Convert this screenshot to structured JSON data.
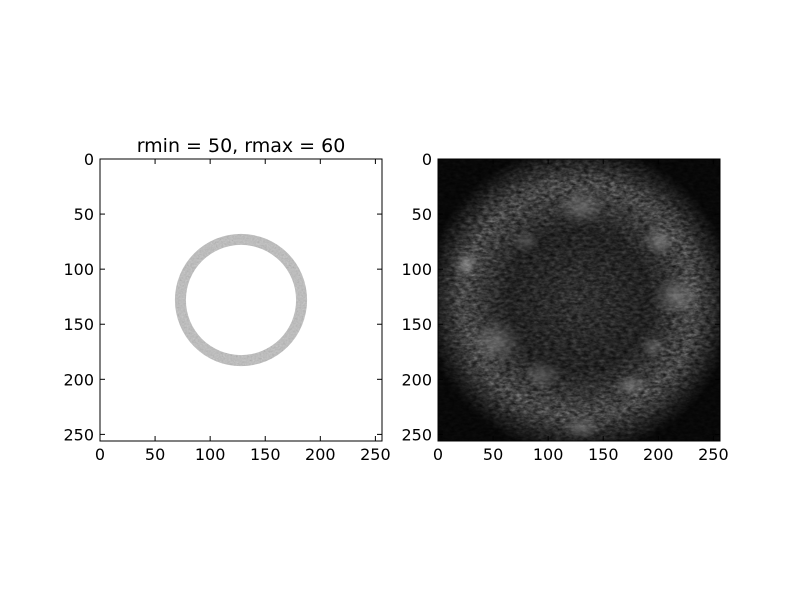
{
  "chart_data": [
    {
      "type": "heatmap",
      "title": "rmin = 50, rmax = 60",
      "colormap": "gray",
      "background": "#ffffff",
      "xlim": [
        0,
        256
      ],
      "ylim": [
        256,
        0
      ],
      "xticks": [
        0,
        50,
        100,
        150,
        200,
        250
      ],
      "yticks": [
        0,
        50,
        100,
        150,
        200,
        250
      ],
      "x_tick_labels": [
        "0",
        "50",
        "100",
        "150",
        "200",
        "250"
      ],
      "y_tick_labels": [
        "0",
        "50",
        "100",
        "150",
        "200",
        "250"
      ],
      "annulus": {
        "center": [
          128,
          128
        ],
        "rmin": 50,
        "rmax": 60
      }
    },
    {
      "type": "heatmap",
      "title": "",
      "colormap": "gray",
      "background": "#000000",
      "xlim": [
        0,
        256
      ],
      "ylim": [
        256,
        0
      ],
      "xticks": [
        0,
        50,
        100,
        150,
        200,
        250
      ],
      "yticks": [
        0,
        50,
        100,
        150,
        200,
        250
      ],
      "x_tick_labels": [
        "0",
        "50",
        "100",
        "150",
        "200",
        "250"
      ],
      "y_tick_labels": [
        "0",
        "50",
        "100",
        "150",
        "200",
        "250"
      ]
    }
  ]
}
